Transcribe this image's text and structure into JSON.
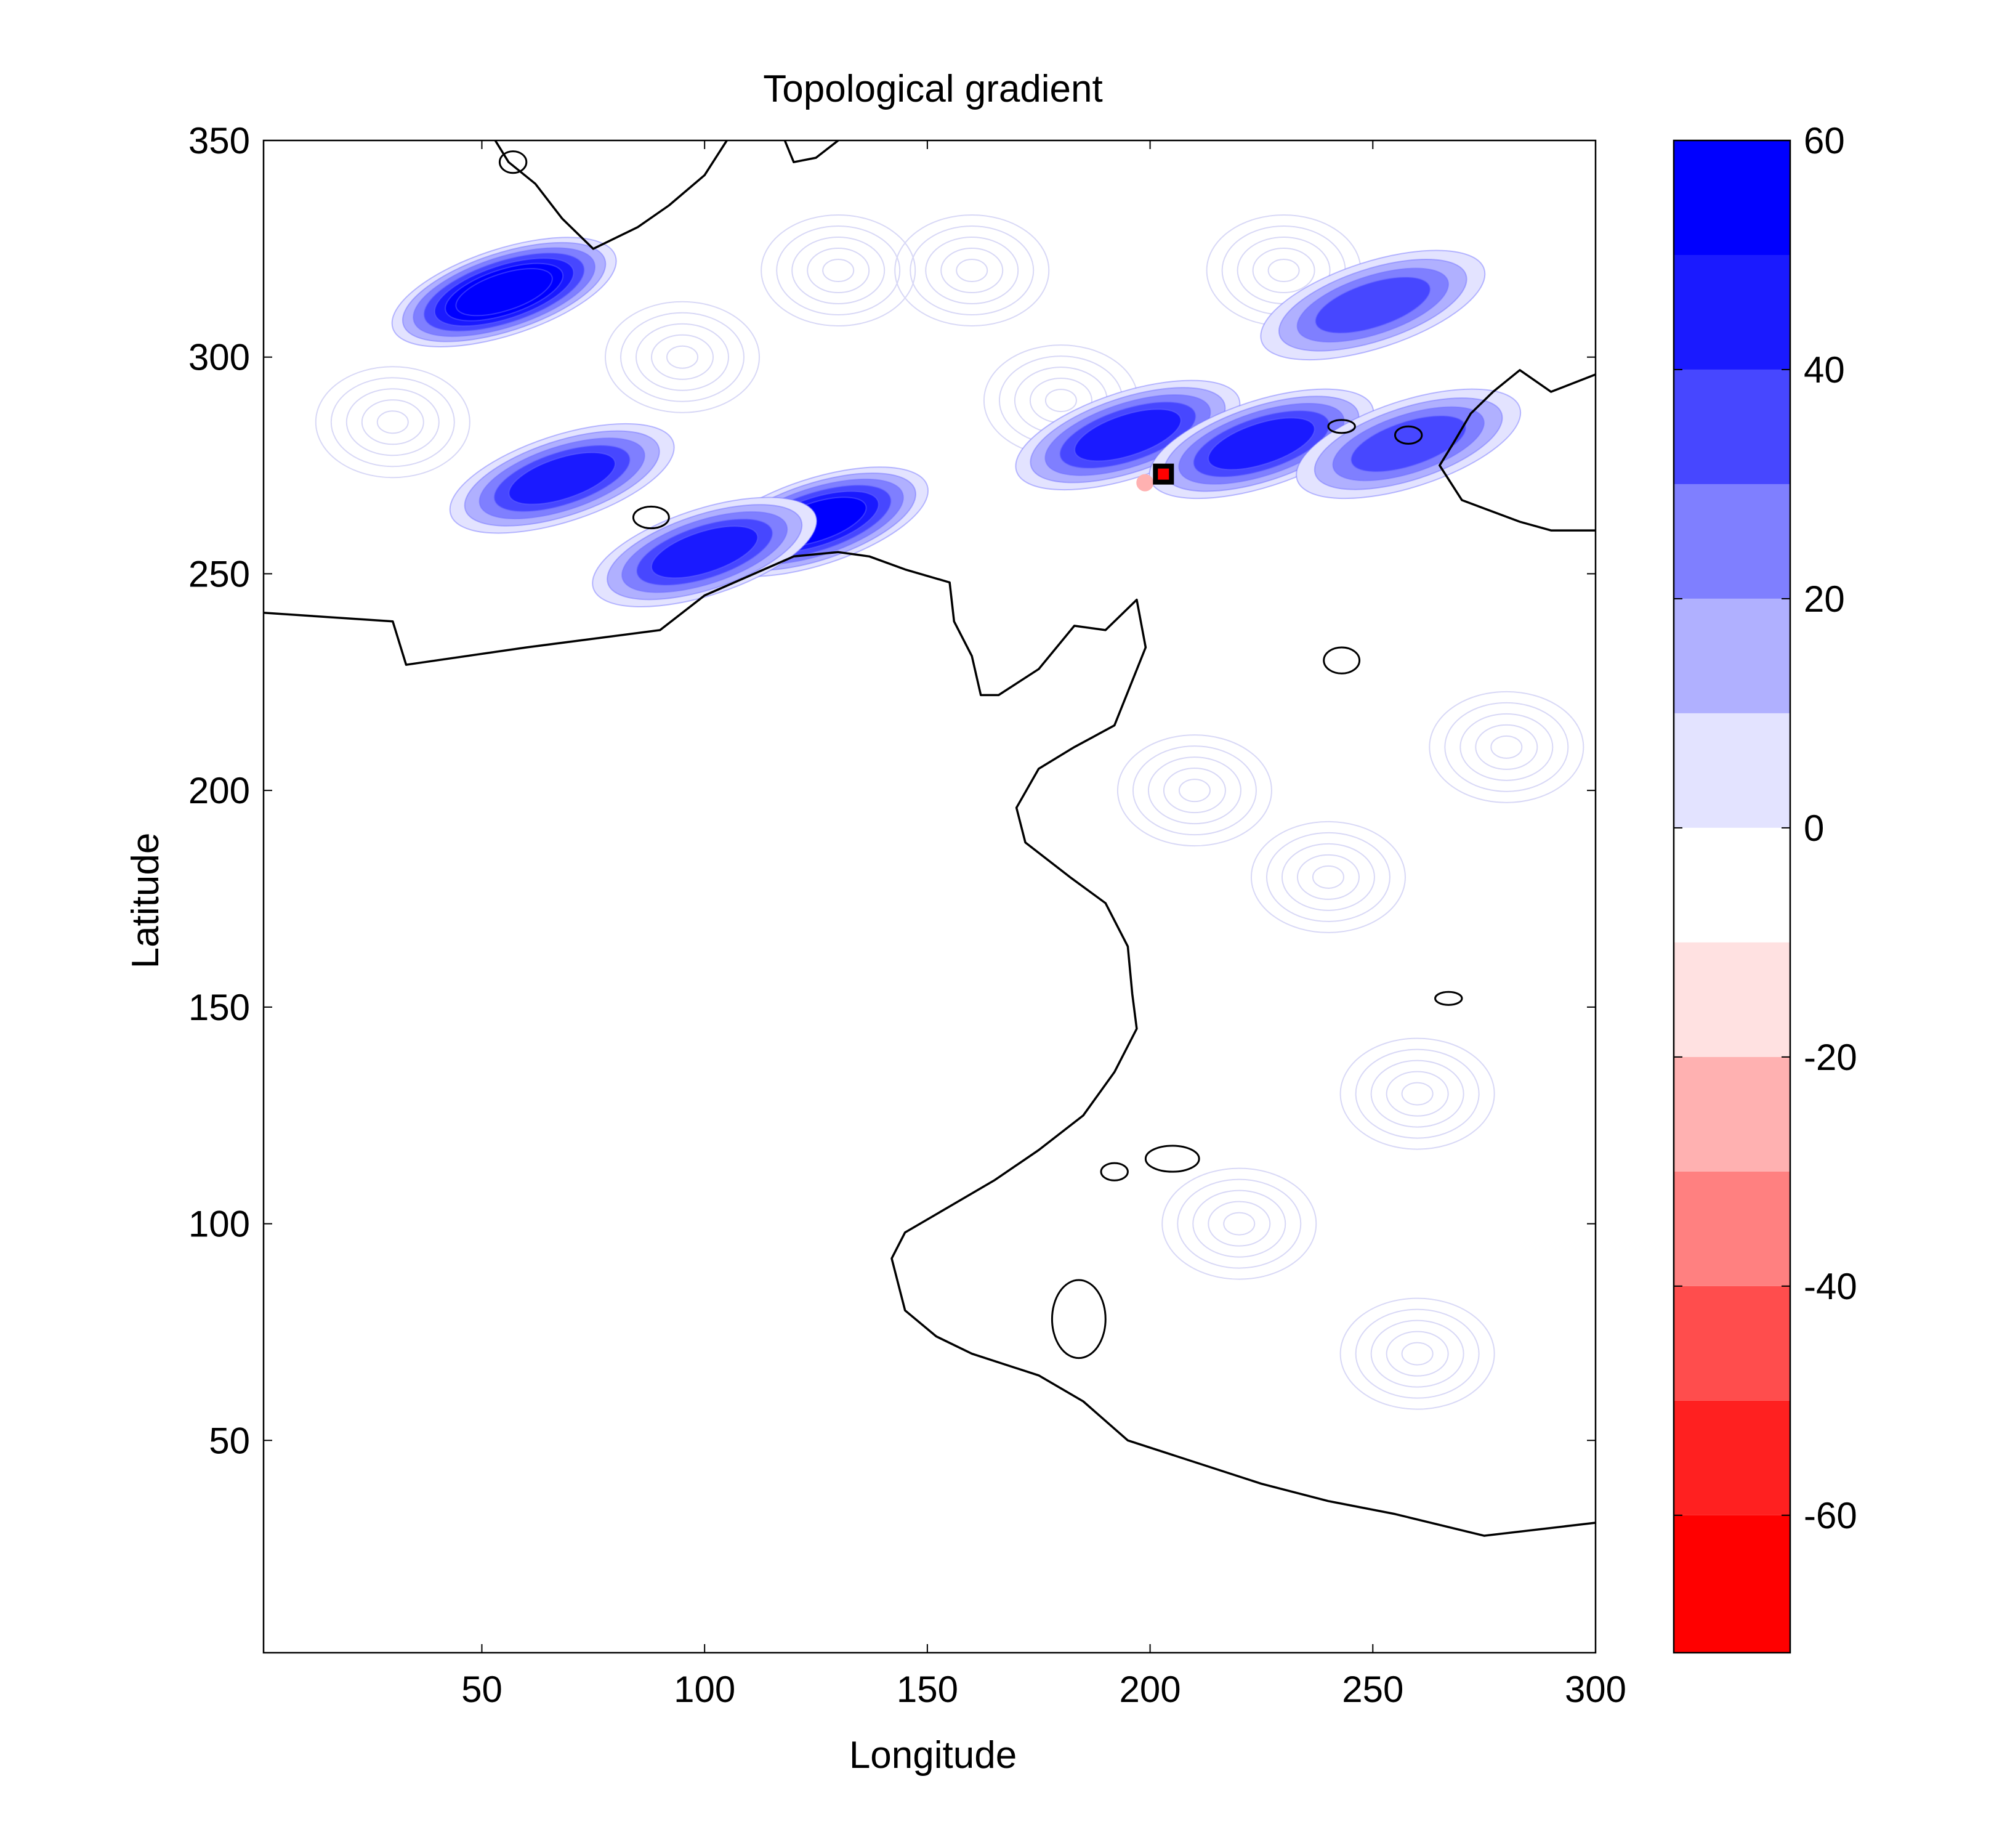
{
  "chart_data": {
    "type": "heatmap",
    "title": "Topological gradient",
    "xlabel": "Longitude",
    "ylabel": "Latitude",
    "xlim": [
      1,
      300
    ],
    "ylim": [
      1,
      350
    ],
    "x_ticks": [
      50,
      100,
      150,
      200,
      250,
      300
    ],
    "y_ticks": [
      50,
      100,
      150,
      200,
      250,
      300,
      350
    ],
    "colorbar": {
      "range": [
        -72,
        60
      ],
      "ticks": [
        60,
        40,
        20,
        0,
        -20,
        -40,
        -60
      ],
      "levels": [
        {
          "from": 50,
          "to": 60,
          "color": "#0000ff"
        },
        {
          "from": 40,
          "to": 50,
          "color": "#1a1aff"
        },
        {
          "from": 30,
          "to": 40,
          "color": "#4747ff"
        },
        {
          "from": 20,
          "to": 30,
          "color": "#7f7fff"
        },
        {
          "from": 10,
          "to": 20,
          "color": "#b0b0ff"
        },
        {
          "from": 0,
          "to": 10,
          "color": "#e3e3ff"
        },
        {
          "from": -10,
          "to": 0,
          "color": "#ffffff"
        },
        {
          "from": -20,
          "to": -10,
          "color": "#ffe1e1"
        },
        {
          "from": -30,
          "to": -20,
          "color": "#ffb1b1"
        },
        {
          "from": -40,
          "to": -30,
          "color": "#ff8080"
        },
        {
          "from": -50,
          "to": -40,
          "color": "#ff4d4d"
        },
        {
          "from": -60,
          "to": -50,
          "color": "#ff2020"
        },
        {
          "from": -72,
          "to": -60,
          "color": "#ff0000"
        }
      ]
    },
    "high_gradient_regions": [
      {
        "center": [
          55,
          315
        ],
        "peak": 60
      },
      {
        "center": [
          68,
          272
        ],
        "peak": 40
      },
      {
        "center": [
          125,
          262
        ],
        "peak": 55
      },
      {
        "center": [
          100,
          255
        ],
        "peak": 40
      },
      {
        "center": [
          195,
          282
        ],
        "peak": 40
      },
      {
        "center": [
          225,
          280
        ],
        "peak": 40
      },
      {
        "center": [
          258,
          280
        ],
        "peak": 30
      },
      {
        "center": [
          250,
          312
        ],
        "peak": 30
      }
    ],
    "marked_point": {
      "x": 203,
      "y": 273
    },
    "coastline": {
      "north": [
        [
          1,
          241
        ],
        [
          30,
          239
        ],
        [
          33,
          229
        ],
        [
          60,
          233
        ],
        [
          90,
          237
        ],
        [
          100,
          245
        ],
        [
          120,
          254
        ],
        [
          130,
          255
        ],
        [
          137,
          254
        ],
        [
          145,
          251
        ],
        [
          155,
          248
        ],
        [
          156,
          239
        ],
        [
          160,
          231
        ],
        [
          162,
          222
        ],
        [
          166,
          222
        ],
        [
          175,
          228
        ],
        [
          183,
          238
        ],
        [
          190,
          237
        ],
        [
          197,
          244
        ],
        [
          199,
          233
        ],
        [
          192,
          215
        ],
        [
          183,
          210
        ],
        [
          175,
          205
        ],
        [
          170,
          196
        ],
        [
          172,
          188
        ],
        [
          182,
          180
        ],
        [
          190,
          174
        ],
        [
          195,
          164
        ],
        [
          196,
          153
        ],
        [
          197,
          145
        ],
        [
          192,
          135
        ],
        [
          185,
          125
        ],
        [
          175,
          117
        ],
        [
          165,
          110
        ],
        [
          155,
          104
        ],
        [
          145,
          98
        ],
        [
          142,
          92
        ],
        [
          145,
          80
        ],
        [
          152,
          74
        ],
        [
          160,
          70
        ],
        [
          175,
          65
        ],
        [
          185,
          59
        ],
        [
          195,
          50
        ],
        [
          210,
          45
        ],
        [
          225,
          40
        ],
        [
          240,
          36
        ],
        [
          255,
          33
        ],
        [
          275,
          28
        ],
        [
          300,
          31
        ]
      ],
      "top_a": [
        [
          53,
          350
        ],
        [
          56,
          345
        ],
        [
          62,
          340
        ],
        [
          68,
          332
        ],
        [
          75,
          325
        ],
        [
          85,
          330
        ],
        [
          92,
          335
        ],
        [
          100,
          342
        ],
        [
          105,
          350
        ]
      ],
      "top_b": [
        [
          118,
          350
        ],
        [
          120,
          345
        ],
        [
          125,
          346
        ],
        [
          130,
          350
        ]
      ],
      "right": [
        [
          300,
          296
        ],
        [
          290,
          292
        ],
        [
          283,
          297
        ],
        [
          277,
          292
        ],
        [
          272,
          287
        ],
        [
          268,
          280
        ],
        [
          265,
          275
        ],
        [
          270,
          267
        ],
        [
          283,
          262
        ],
        [
          290,
          260
        ],
        [
          300,
          260
        ]
      ],
      "islands": [
        {
          "center": [
            88,
            263
          ],
          "r": [
            4,
            2.5
          ]
        },
        {
          "center": [
            184,
            78
          ],
          "r": [
            6,
            9
          ]
        },
        {
          "center": [
            205,
            115
          ],
          "r": [
            6,
            3
          ]
        },
        {
          "center": [
            243,
            230
          ],
          "r": [
            4,
            3
          ]
        },
        {
          "center": [
            267,
            152
          ],
          "r": [
            3,
            1.5
          ]
        },
        {
          "center": [
            57,
            345
          ],
          "r": [
            3,
            2.5
          ]
        },
        {
          "center": [
            243,
            284
          ],
          "r": [
            3,
            1.5
          ]
        },
        {
          "center": [
            258,
            282
          ],
          "r": [
            3,
            2
          ]
        },
        {
          "center": [
            192,
            112
          ],
          "r": [
            3,
            2
          ]
        }
      ]
    }
  }
}
